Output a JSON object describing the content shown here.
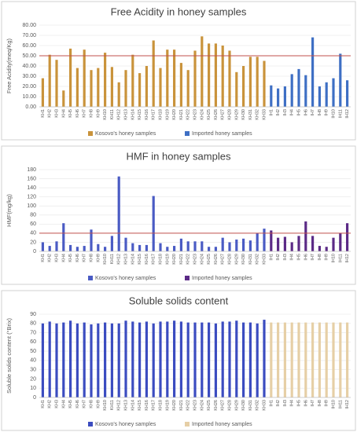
{
  "chart_data": [
    {
      "type": "bar",
      "title": "Free Acidity in honey samples",
      "y_label": "Free Acidity(meq/Kg)",
      "categories": [
        "KH1",
        "KH2",
        "KH3",
        "KH4",
        "KH5",
        "KH6",
        "KH7",
        "KH8",
        "KH9",
        "KH10",
        "KH11",
        "KH12",
        "KH13",
        "KH14",
        "KH15",
        "KH16",
        "KH17",
        "KH18",
        "KH19",
        "KH20",
        "KH21",
        "KH22",
        "KH23",
        "KH24",
        "KH25",
        "KH26",
        "KH27",
        "KH28",
        "KH29",
        "KH30",
        "KH31",
        "KH32",
        "KH33",
        "IH1",
        "IH2",
        "IH3",
        "IH4",
        "IH5",
        "IH6",
        "IH7",
        "IH8",
        "IH9",
        "IH10",
        "IH11",
        "IH12"
      ],
      "series": [
        {
          "name": "Kosovo's honey samples",
          "color": "#c9933b",
          "values": [
            28,
            51,
            46,
            16,
            57,
            38,
            56,
            36,
            38,
            53,
            39,
            24,
            36,
            51,
            33,
            40,
            65,
            38,
            56,
            56,
            43,
            36,
            55,
            69,
            62,
            62,
            60,
            55,
            34,
            40,
            49,
            49,
            45,
            null,
            null,
            null,
            null,
            null,
            null,
            null,
            null,
            null,
            null,
            null,
            null
          ]
        },
        {
          "name": "Imported honey samples",
          "color": "#3e6fc4",
          "values": [
            null,
            null,
            null,
            null,
            null,
            null,
            null,
            null,
            null,
            null,
            null,
            null,
            null,
            null,
            null,
            null,
            null,
            null,
            null,
            null,
            null,
            null,
            null,
            null,
            null,
            null,
            null,
            null,
            null,
            null,
            null,
            null,
            null,
            21,
            18,
            20,
            32,
            37,
            31,
            68,
            20,
            24,
            28,
            52,
            26
          ]
        }
      ],
      "ylim": [
        0,
        80
      ],
      "yticks": [
        {
          "value": 0,
          "label": "0.00"
        },
        {
          "value": 10,
          "label": "10.00"
        },
        {
          "value": 20,
          "label": "20.00"
        },
        {
          "value": 30,
          "label": "30.00"
        },
        {
          "value": 40,
          "label": "40.00"
        },
        {
          "value": 50,
          "label": "50.00"
        },
        {
          "value": 60,
          "label": "60.00"
        },
        {
          "value": 70,
          "label": "70.00"
        },
        {
          "value": 80,
          "label": "80.00"
        }
      ],
      "reference_line": 50,
      "reference_color": "#c0504d",
      "grid": true,
      "legend": "bottom"
    },
    {
      "type": "bar",
      "title": "HMF in honey samples",
      "y_label": "HMF(mg/kg)",
      "categories": [
        "KH1",
        "KH2",
        "KH3",
        "KH4",
        "KH5",
        "KH6",
        "KH7",
        "KH8",
        "KH9",
        "KH10",
        "KH11",
        "KH12",
        "KH13",
        "KH14",
        "KH15",
        "KH16",
        "KH17",
        "KH18",
        "KH19",
        "KH20",
        "KH21",
        "KH22",
        "KH23",
        "KH24",
        "KH25",
        "KH26",
        "KH27",
        "KH28",
        "KH29",
        "KH30",
        "KH31",
        "KH32",
        "KH33",
        "IH1",
        "IH2",
        "IH3",
        "IH4",
        "IH5",
        "IH6",
        "IH7",
        "IH8",
        "IH9",
        "IH10",
        "IH11",
        "IH12"
      ],
      "series": [
        {
          "name": "Kosovo's honey samples",
          "color": "#4a5bc4",
          "values": [
            20,
            12,
            22,
            62,
            14,
            10,
            12,
            48,
            16,
            10,
            34,
            165,
            30,
            18,
            14,
            14,
            122,
            18,
            10,
            12,
            28,
            22,
            22,
            22,
            10,
            10,
            30,
            20,
            26,
            28,
            24,
            40,
            50,
            null,
            null,
            null,
            null,
            null,
            null,
            null,
            null,
            null,
            null,
            null,
            null
          ]
        },
        {
          "name": "Imported honey samples",
          "color": "#5b2a86",
          "values": [
            null,
            null,
            null,
            null,
            null,
            null,
            null,
            null,
            null,
            null,
            null,
            null,
            null,
            null,
            null,
            null,
            null,
            null,
            null,
            null,
            null,
            null,
            null,
            null,
            null,
            null,
            null,
            null,
            null,
            null,
            null,
            null,
            null,
            46,
            30,
            32,
            20,
            34,
            66,
            34,
            12,
            10,
            30,
            40,
            62
          ]
        }
      ],
      "ylim": [
        0,
        180
      ],
      "yticks": [
        0,
        20,
        40,
        60,
        80,
        100,
        120,
        140,
        160,
        180
      ],
      "reference_line": 40,
      "reference_color": "#c0504d",
      "grid": true,
      "legend": "bottom"
    },
    {
      "type": "bar",
      "title": "Soluble solids content",
      "y_label": "Soluble solids content (°Brix)",
      "categories": [
        "KH1",
        "KH2",
        "KH3",
        "KH4",
        "KH5",
        "KH6",
        "KH7",
        "KH8",
        "KH9",
        "KH10",
        "KH11",
        "KH12",
        "KH13",
        "KH14",
        "KH15",
        "KH16",
        "KH17",
        "KH18",
        "KH19",
        "KH20",
        "KH21",
        "KH22",
        "KH23",
        "KH24",
        "KH25",
        "KH26",
        "KH27",
        "KH28",
        "KH29",
        "KH30",
        "KH31",
        "KH32",
        "KH33",
        "IH1",
        "IH2",
        "IH3",
        "IH4",
        "IH5",
        "IH6",
        "IH7",
        "IH8",
        "IH9",
        "IH10",
        "IH11",
        "IH12"
      ],
      "series": [
        {
          "name": "Kosovo's honey samples",
          "color": "#3b4cc0",
          "values": [
            80,
            82,
            80,
            81,
            83,
            80,
            81,
            79,
            80,
            81,
            80,
            80,
            83,
            82,
            81,
            82,
            80,
            82,
            82,
            83,
            82,
            81,
            81,
            81,
            81,
            80,
            82,
            82,
            83,
            81,
            81,
            80,
            84,
            null,
            null,
            null,
            null,
            null,
            null,
            null,
            null,
            null,
            null,
            null,
            null
          ]
        },
        {
          "name": "Imported honey samples",
          "color": "#e6cfa6",
          "values": [
            null,
            null,
            null,
            null,
            null,
            null,
            null,
            null,
            null,
            null,
            null,
            null,
            null,
            null,
            null,
            null,
            null,
            null,
            null,
            null,
            null,
            null,
            null,
            null,
            null,
            null,
            null,
            null,
            null,
            null,
            null,
            null,
            null,
            81,
            81,
            81,
            81,
            81,
            81,
            81,
            81,
            81,
            81,
            81,
            81
          ]
        }
      ],
      "ylim": [
        0,
        90
      ],
      "yticks": [
        0,
        10,
        20,
        30,
        40,
        50,
        60,
        70,
        80,
        90
      ],
      "grid": true,
      "legend": "bottom"
    }
  ]
}
